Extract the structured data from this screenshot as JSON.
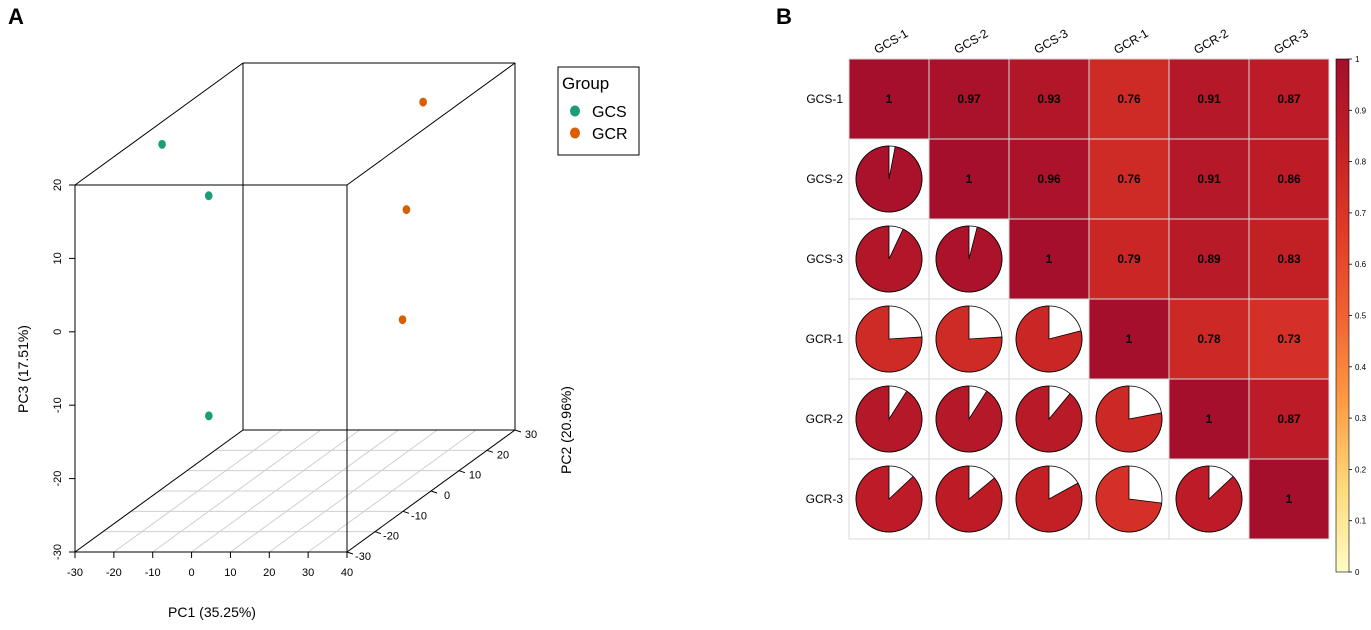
{
  "panel_a": {
    "label": "A",
    "chart_data": {
      "type": "scatter3d",
      "xlabel": "PC1 (35.25%)",
      "ylabel": "PC2 (20.96%)",
      "zlabel": "PC3 (17.51%)",
      "xlim": [
        -30,
        40
      ],
      "ylim": [
        -30,
        30
      ],
      "zlim": [
        -30,
        20
      ],
      "x_ticks": [
        "-30",
        "-20",
        "-10",
        "0",
        "10",
        "20",
        "30",
        "40"
      ],
      "y_ticks": [
        "-30",
        "-20",
        "-10",
        "0",
        "10",
        "20",
        "30"
      ],
      "z_ticks": [
        "-30",
        "-20",
        "-10",
        "0",
        "10",
        "20"
      ],
      "grid": "bottom plane",
      "legend_position": "top-right",
      "legend_title": "Group",
      "series": [
        {
          "name": "GCS",
          "color": "#1b9e77",
          "points": [
            {
              "x": -22,
              "y": -10,
              "z": 20
            },
            {
              "x": -10,
              "y": -10,
              "z": 13
            },
            {
              "x": 3,
              "y": -28,
              "z": -12
            }
          ]
        },
        {
          "name": "GCR",
          "color": "#d95f02",
          "points": [
            {
              "x": 25,
              "y": 18,
              "z": 18
            },
            {
              "x": 38,
              "y": -6,
              "z": 10
            },
            {
              "x": 37,
              "y": -6,
              "z": -5
            }
          ]
        }
      ]
    }
  },
  "panel_b": {
    "label": "B",
    "chart_data": {
      "type": "heatmap",
      "title": "",
      "labels": [
        "GCS-1",
        "GCS-2",
        "GCS-3",
        "GCR-1",
        "GCR-2",
        "GCR-3"
      ],
      "matrix": [
        [
          1,
          0.97,
          0.93,
          0.76,
          0.91,
          0.87
        ],
        [
          0.97,
          1,
          0.96,
          0.76,
          0.91,
          0.86
        ],
        [
          0.93,
          0.96,
          1,
          0.79,
          0.89,
          0.83
        ],
        [
          0.76,
          0.76,
          0.79,
          1,
          0.78,
          0.73
        ],
        [
          0.91,
          0.91,
          0.89,
          0.78,
          1,
          0.87
        ],
        [
          0.87,
          0.86,
          0.83,
          0.73,
          0.87,
          1
        ]
      ],
      "upper_display": "colored square with value",
      "lower_display": "pie",
      "colorbar": {
        "range": [
          0,
          1
        ],
        "ticks": [
          "0",
          "0.1",
          "0.2",
          "0.3",
          "0.4",
          "0.5",
          "0.6",
          "0.7",
          "0.8",
          "0.9",
          "1"
        ],
        "colors": [
          "#fffbc4",
          "#feda7a",
          "#fd9b44",
          "#f16134",
          "#e03a27",
          "#c21f26",
          "#a50f2c"
        ],
        "legend_position": "right"
      }
    }
  }
}
